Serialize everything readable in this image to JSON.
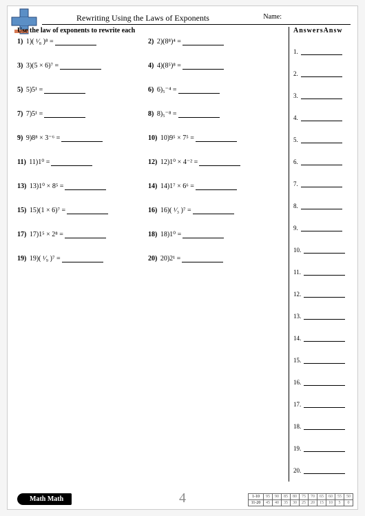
{
  "title": "Rewriting Using the Laws of Exponents",
  "name_label": "Name:",
  "instruction": "Use the law of exponents to rewrite each",
  "problems": [
    {
      "n": "1)",
      "e": "1)( ¹⁄₈ )⁸ ="
    },
    {
      "n": "2)",
      "e": "2)(8⁸)⁴ ="
    },
    {
      "n": "3)",
      "e": "3)(5 × 6)⁷ ="
    },
    {
      "n": "4)",
      "e": "4)(8⁵)⁸ ="
    },
    {
      "n": "5)",
      "e": "5)5¹ ="
    },
    {
      "n": "6)",
      "e": "6)₅⁻⁴ ="
    },
    {
      "n": "7)",
      "e": "7)5¹ ="
    },
    {
      "n": "8)",
      "e": "8)₅⁻⁸ ="
    },
    {
      "n": "9)",
      "e": "9)8⁸ × 3⁻⁶ ="
    },
    {
      "n": "10)",
      "e": "10)9⁵ × 7⁵ ="
    },
    {
      "n": "11)",
      "e": "11)1⁰ ="
    },
    {
      "n": "12)",
      "e": "12)1⁰ × 4⁻² ="
    },
    {
      "n": "13)",
      "e": "13)1⁰ × 8⁵ ="
    },
    {
      "n": "14)",
      "e": "14)1⁷ × 6⁶ ="
    },
    {
      "n": "15)",
      "e": "15)(1 × 6)⁷ ="
    },
    {
      "n": "16)",
      "e": "16)( ¹⁄₃ )⁷ ="
    },
    {
      "n": "17)",
      "e": "17)1⁵ × 2⁸ ="
    },
    {
      "n": "18)",
      "e": "18)1⁰ ="
    },
    {
      "n": "19)",
      "e": "19)( ¹⁄₉ )⁷ ="
    },
    {
      "n": "20)",
      "e": "20)2¹ ="
    }
  ],
  "answers_header": "AnswersAnsw",
  "answer_count": 20,
  "footer_badge": "Math Math",
  "page_number": "4",
  "score": {
    "row1_label": "1-10",
    "row1": [
      "95",
      "90",
      "85",
      "80",
      "75",
      "70",
      "65",
      "60",
      "55",
      "50"
    ],
    "row2_label": "11-20",
    "row2": [
      "45",
      "40",
      "35",
      "30",
      "25",
      "20",
      "15",
      "10",
      "5",
      "0"
    ]
  }
}
